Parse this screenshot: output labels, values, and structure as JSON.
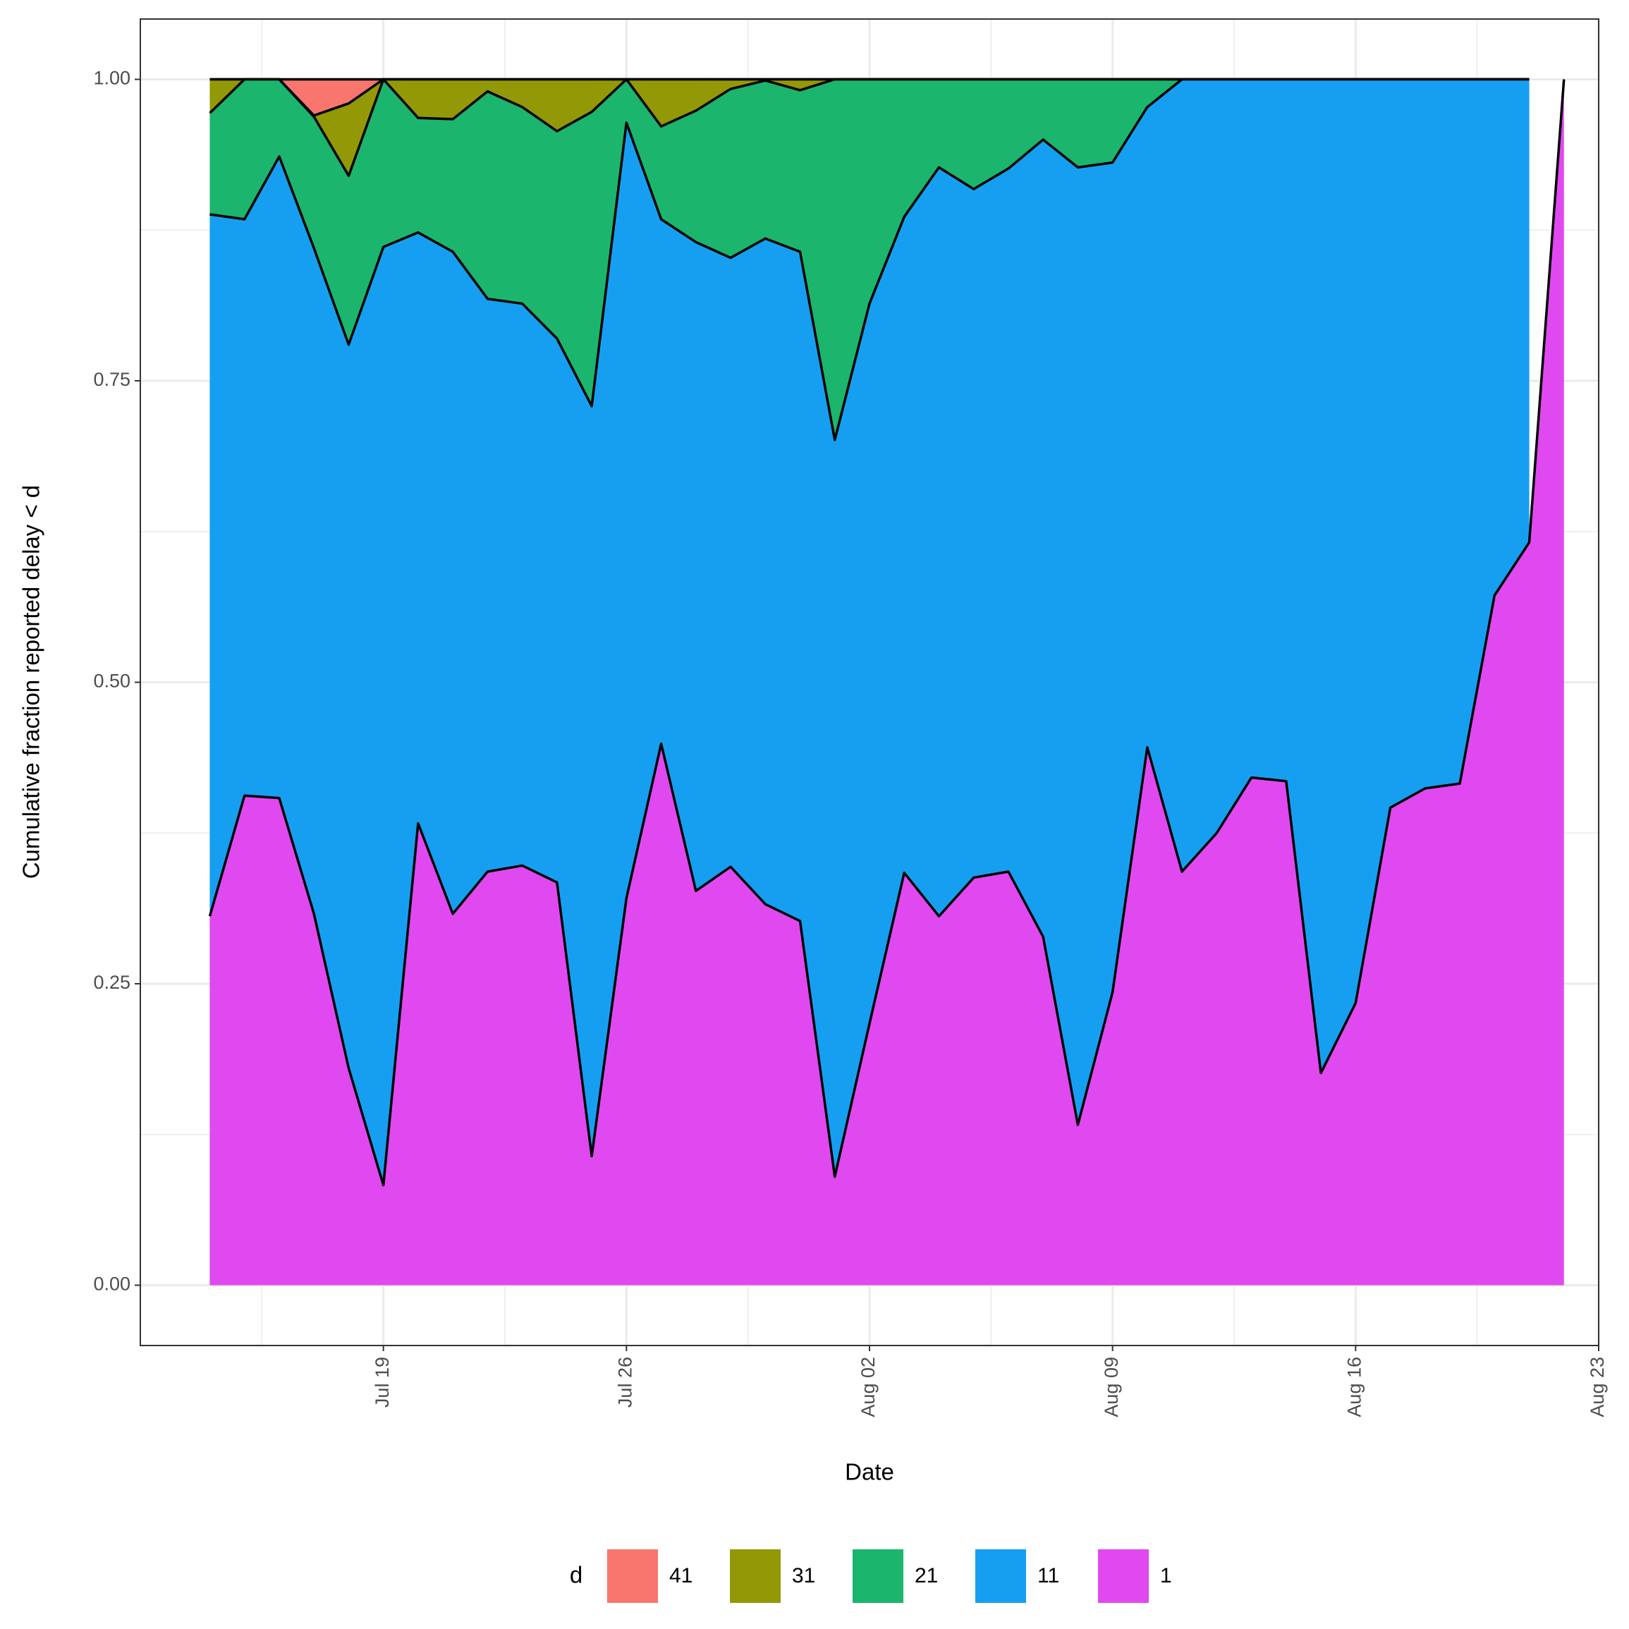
{
  "chart_data": {
    "type": "area",
    "x_label": "Date",
    "y_label": "Cumulative fraction reported delay < d",
    "legend_title": "d",
    "legend_position": "bottom",
    "grid": true,
    "x": [
      "Jul 14",
      "Jul 15",
      "Jul 16",
      "Jul 17",
      "Jul 18",
      "Jul 19",
      "Jul 20",
      "Jul 21",
      "Jul 22",
      "Jul 23",
      "Jul 24",
      "Jul 25",
      "Jul 26",
      "Jul 27",
      "Jul 28",
      "Jul 29",
      "Jul 30",
      "Jul 31",
      "Aug 01",
      "Aug 02",
      "Aug 03",
      "Aug 04",
      "Aug 05",
      "Aug 06",
      "Aug 07",
      "Aug 08",
      "Aug 09",
      "Aug 10",
      "Aug 11",
      "Aug 12",
      "Aug 13",
      "Aug 14",
      "Aug 15",
      "Aug 16",
      "Aug 17",
      "Aug 18",
      "Aug 19",
      "Aug 20",
      "Aug 21",
      "Aug 22"
    ],
    "xlim": [
      "Jul 12",
      "Aug 23"
    ],
    "xticks": [
      "Jul 19",
      "Jul 26",
      "Aug 02",
      "Aug 09",
      "Aug 16",
      "Aug 23"
    ],
    "ylim": [
      -0.05,
      1.05
    ],
    "yticks": [
      {
        "value": 0,
        "label": "0.00"
      },
      {
        "value": 0.25,
        "label": "0.25"
      },
      {
        "value": 0.5,
        "label": "0.50"
      },
      {
        "value": 0.75,
        "label": "0.75"
      },
      {
        "value": 1,
        "label": "1.00"
      }
    ],
    "series": [
      {
        "name": "41",
        "color": "#f8766d",
        "values": [
          1,
          1,
          1,
          1,
          1,
          1,
          1,
          1,
          1,
          1,
          1,
          1,
          1,
          1,
          1,
          1,
          1,
          1,
          1,
          1,
          1,
          1,
          1,
          1,
          1,
          1,
          1,
          1,
          1,
          1,
          1,
          1,
          1,
          1,
          1,
          1,
          1,
          1,
          1,
          null
        ]
      },
      {
        "name": "31",
        "color": "#939906",
        "values": [
          1,
          1,
          1,
          0.97,
          0.98,
          1,
          1,
          1,
          1,
          1,
          1,
          1,
          1,
          1,
          1,
          1,
          1,
          1,
          1,
          1,
          1,
          1,
          1,
          1,
          1,
          1,
          1,
          1,
          1,
          1,
          1,
          1,
          1,
          1,
          1,
          1,
          1,
          1,
          1,
          null
        ]
      },
      {
        "name": "21",
        "color": "#1bb56e",
        "values": [
          0.972,
          1,
          1,
          0.969,
          0.92,
          1,
          0.968,
          0.967,
          0.99,
          0.977,
          0.957,
          0.973,
          1,
          0.961,
          0.974,
          0.992,
          0.999,
          0.991,
          1,
          1,
          1,
          1,
          1,
          1,
          1,
          1,
          1,
          1,
          1,
          1,
          1,
          1,
          1,
          1,
          1,
          1,
          1,
          1,
          1,
          null
        ]
      },
      {
        "name": "11",
        "color": "#169ff1",
        "values": [
          0.888,
          0.884,
          0.936,
          0.86,
          0.78,
          0.861,
          0.873,
          0.857,
          0.818,
          0.814,
          0.785,
          0.729,
          0.964,
          0.884,
          0.865,
          0.852,
          0.868,
          0.857,
          0.701,
          0.814,
          0.886,
          0.927,
          0.909,
          0.926,
          0.95,
          0.927,
          0.931,
          0.977,
          1,
          1,
          1,
          1,
          1,
          1,
          1,
          1,
          1,
          1,
          1,
          null
        ]
      },
      {
        "name": "1",
        "color": "#e049ef",
        "values": [
          0.306,
          0.406,
          0.404,
          0.308,
          0.18,
          0.083,
          0.383,
          0.308,
          0.343,
          0.348,
          0.334,
          0.107,
          0.321,
          0.449,
          0.327,
          0.347,
          0.316,
          0.302,
          0.09,
          0.217,
          0.342,
          0.306,
          0.338,
          0.343,
          0.289,
          0.133,
          0.243,
          0.446,
          0.343,
          0.375,
          0.421,
          0.418,
          0.176,
          0.234,
          0.396,
          0.412,
          0.416,
          0.572,
          0.616,
          1
        ]
      }
    ]
  }
}
